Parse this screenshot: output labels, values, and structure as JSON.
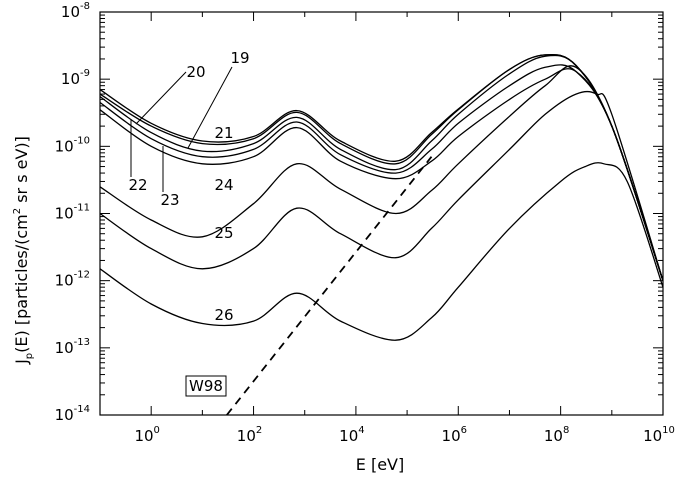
{
  "chart_data": {
    "type": "line",
    "xlabel": "E [eV]",
    "ylabel_main": "J",
    "ylabel_sub": "p",
    "ylabel_rest": "(E) [particles/(cm",
    "ylabel_sup": "2",
    "ylabel_tail": " sr s eV)]",
    "x_scale": "log",
    "y_scale": "log",
    "xlim": [
      0.1,
      10000000000.0
    ],
    "ylim": [
      1e-14,
      1e-08
    ],
    "grid": false,
    "x_ticks": [
      {
        "value": 1,
        "base": "10",
        "exp": "0"
      },
      {
        "value": 100,
        "base": "10",
        "exp": "2"
      },
      {
        "value": 10000,
        "base": "10",
        "exp": "4"
      },
      {
        "value": 1000000,
        "base": "10",
        "exp": "6"
      },
      {
        "value": 100000000,
        "base": "10",
        "exp": "8"
      },
      {
        "value": 10000000000,
        "base": "10",
        "exp": "10"
      }
    ],
    "y_ticks": [
      {
        "value": 1e-14,
        "base": "10",
        "exp": "-14"
      },
      {
        "value": 1e-13,
        "base": "10",
        "exp": "-13"
      },
      {
        "value": 1e-12,
        "base": "10",
        "exp": "-12"
      },
      {
        "value": 1e-11,
        "base": "10",
        "exp": "-11"
      },
      {
        "value": 1e-10,
        "base": "10",
        "exp": "-10"
      },
      {
        "value": 1e-09,
        "base": "10",
        "exp": "-9"
      },
      {
        "value": 1e-08,
        "base": "10",
        "exp": "-8"
      }
    ],
    "series": [
      {
        "name": "19",
        "style": "solid",
        "x": [
          0.1,
          1,
          10,
          100,
          700,
          5000,
          60000,
          300000,
          1000000,
          10000000,
          50000000,
          200000000,
          1000000000,
          10000000000
        ],
        "y": [
          6e-10,
          2e-10,
          1.1e-10,
          1.3e-10,
          3.2e-10,
          1.1e-10,
          5.5e-11,
          1.5e-10,
          3.5e-10,
          1.4e-09,
          2.3e-09,
          1.6e-09,
          2e-10,
          1e-12
        ]
      },
      {
        "name": "20",
        "style": "solid",
        "x": [
          0.1,
          1,
          10,
          100,
          700,
          5000,
          60000,
          300000,
          1000000,
          10000000,
          50000000,
          200000000,
          1000000000,
          10000000000
        ],
        "y": [
          7e-10,
          2.2e-10,
          1.2e-10,
          1.4e-10,
          3.4e-10,
          1.2e-10,
          6e-11,
          1.6e-10,
          3.6e-10,
          1.4e-09,
          2.3e-09,
          1.6e-09,
          2e-10,
          1e-12
        ]
      },
      {
        "name": "21",
        "style": "solid",
        "x": [
          0.1,
          1,
          10,
          100,
          700,
          5000,
          60000,
          300000,
          1000000,
          10000000,
          50000000,
          200000000,
          1000000000,
          10000000000
        ],
        "y": [
          5.5e-10,
          1.6e-10,
          8.5e-11,
          1.1e-10,
          2.7e-10,
          9e-11,
          4.5e-11,
          1.2e-10,
          3e-10,
          1.2e-09,
          2.2e-09,
          1.6e-09,
          2e-10,
          1e-12
        ]
      },
      {
        "name": "22",
        "style": "solid",
        "x": [
          0.1,
          1,
          10,
          100,
          700,
          5000,
          60000,
          300000,
          1000000,
          10000000,
          50000000,
          200000000,
          1000000000,
          10000000000
        ],
        "y": [
          4.5e-10,
          1.3e-10,
          7e-11,
          9e-11,
          2.3e-10,
          7.5e-11,
          4e-11,
          9e-11,
          2.2e-10,
          8e-10,
          1.5e-09,
          1.3e-09,
          2e-10,
          1e-12
        ]
      },
      {
        "name": "23",
        "style": "solid",
        "x": [
          0.1,
          1,
          10,
          100,
          700,
          5000,
          60000,
          300000,
          1000000,
          10000000,
          50000000,
          200000000,
          1000000000,
          10000000000
        ],
        "y": [
          3.5e-10,
          1e-10,
          5.5e-11,
          7e-11,
          1.9e-10,
          6e-11,
          3.3e-11,
          6e-11,
          1.4e-10,
          5e-10,
          1e-09,
          1.3e-09,
          2e-10,
          1e-12
        ]
      },
      {
        "name": "24",
        "style": "solid",
        "x": [
          0.1,
          1,
          10,
          100,
          700,
          5000,
          60000,
          300000,
          1000000,
          10000000,
          50000000,
          200000000,
          1000000000,
          10000000000
        ],
        "y": [
          2.5e-11,
          8e-12,
          4.5e-12,
          1.4e-11,
          5.5e-11,
          2.3e-11,
          1e-11,
          2.2e-11,
          5.5e-11,
          2.8e-10,
          8e-10,
          1.5e-09,
          2e-10,
          1e-12
        ]
      },
      {
        "name": "25",
        "style": "solid",
        "x": [
          0.1,
          1,
          10,
          100,
          700,
          5000,
          60000,
          300000,
          1000000,
          10000000,
          50000000,
          200000000,
          500000000,
          1000000000,
          10000000000
        ],
        "y": [
          1e-11,
          3e-12,
          1.5e-12,
          3e-12,
          1.2e-11,
          5e-12,
          2.2e-12,
          6e-12,
          1.6e-11,
          9e-11,
          3e-10,
          6e-10,
          6e-10,
          3e-10,
          1e-12
        ]
      },
      {
        "name": "26",
        "style": "solid",
        "x": [
          0.1,
          1,
          10,
          100,
          700,
          5000,
          60000,
          300000,
          1000000,
          10000000,
          100000000,
          300000000,
          700000000,
          2000000000,
          10000000000
        ],
        "y": [
          1.5e-12,
          4.5e-13,
          2.3e-13,
          2.5e-13,
          6.5e-13,
          2.5e-13,
          1.3e-13,
          2.8e-13,
          8e-13,
          6e-12,
          3e-11,
          5e-11,
          5.5e-11,
          3e-11,
          8e-13
        ]
      },
      {
        "name": "W98",
        "style": "dashed",
        "x": [
          30,
          300000
        ],
        "y": [
          1e-14,
          7e-11
        ]
      }
    ],
    "annotations": [
      {
        "text": "20"
      },
      {
        "text": "19"
      },
      {
        "text": "21"
      },
      {
        "text": "22"
      },
      {
        "text": "23"
      },
      {
        "text": "24"
      },
      {
        "text": "25"
      },
      {
        "text": "26"
      },
      {
        "text": "W98"
      }
    ]
  }
}
